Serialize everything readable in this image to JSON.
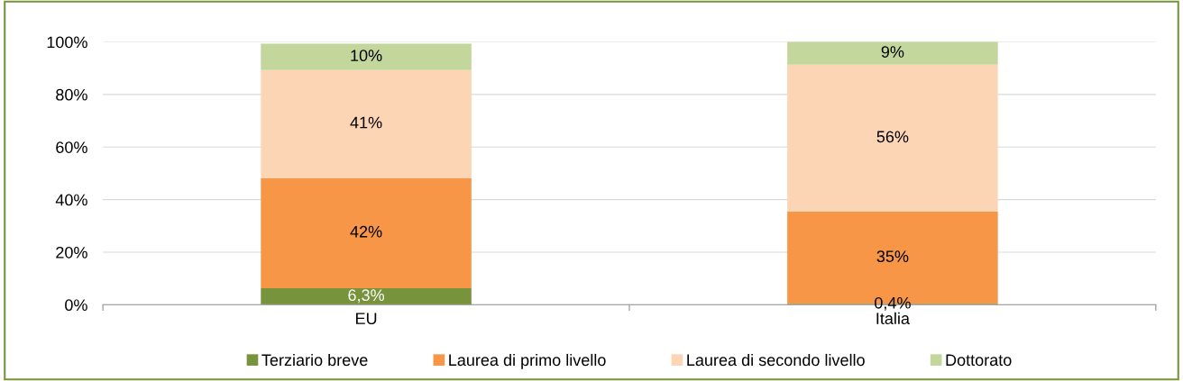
{
  "chart_data": {
    "type": "bar",
    "stacked": true,
    "categories": [
      "EU",
      "Italia"
    ],
    "series": [
      {
        "name": "Terziario breve",
        "color": "#77933c",
        "values": [
          6.3,
          0.4
        ],
        "value_labels": [
          "6,3%",
          "0,4%"
        ]
      },
      {
        "name": "Laurea di primo livello",
        "color": "#f79646",
        "values": [
          42,
          35
        ],
        "value_labels": [
          "42%",
          "35%"
        ]
      },
      {
        "name": "Laurea di secondo livello",
        "color": "#fcd5b5",
        "values": [
          41,
          56
        ],
        "value_labels": [
          "41%",
          "56%"
        ]
      },
      {
        "name": "Dottorato",
        "color": "#c3d69b",
        "values": [
          10,
          9
        ],
        "value_labels": [
          "10%",
          "9%"
        ]
      }
    ],
    "ylim": [
      0,
      100
    ],
    "yticks": [
      {
        "value": 0,
        "label": "0%"
      },
      {
        "value": 20,
        "label": "20%"
      },
      {
        "value": 40,
        "label": "40%"
      },
      {
        "value": 60,
        "label": "60%"
      },
      {
        "value": 80,
        "label": "80%"
      },
      {
        "value": 100,
        "label": "100%"
      }
    ],
    "grid": "y",
    "legend": "bottom"
  }
}
